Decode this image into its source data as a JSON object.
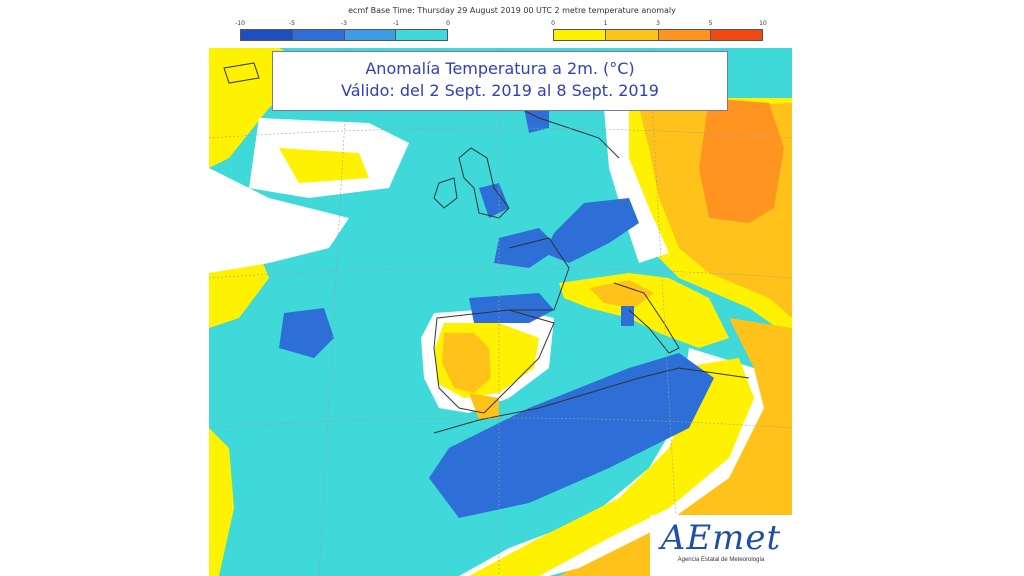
{
  "header": {
    "caption": "ecmf  Base Time: Thursday 29 August 2019 00 UTC 2 metre temperature anomaly"
  },
  "legend": {
    "cold": {
      "ticks": [
        "-10",
        "-5",
        "-3",
        "-1",
        "0"
      ],
      "colors": [
        "#1f4fbf",
        "#2d6fd6",
        "#3e9be6",
        "#40d8d8"
      ]
    },
    "warm": {
      "ticks": [
        "0",
        "1",
        "3",
        "5",
        "10"
      ],
      "colors": [
        "#fff200",
        "#ffc21a",
        "#ff9420",
        "#f04a14"
      ]
    }
  },
  "title": {
    "line1": "Anomalía Temperatura a 2m. (°C)",
    "line2": "Válido: del 2 Sept. 2019 al 8 Sept. 2019"
  },
  "logo": {
    "mark": "AEmet",
    "subtitle": "Agencia Estatal de Meteorología"
  },
  "map_colors": {
    "ocean_base": "#3fd9d9",
    "neutral": "#ffffff",
    "slight_warm": "#fff200",
    "warm": "#ffc21a",
    "hot": "#ff9420",
    "cool": "#2d6fd6",
    "coast": "#333333",
    "grid": "#9aa0a8"
  }
}
